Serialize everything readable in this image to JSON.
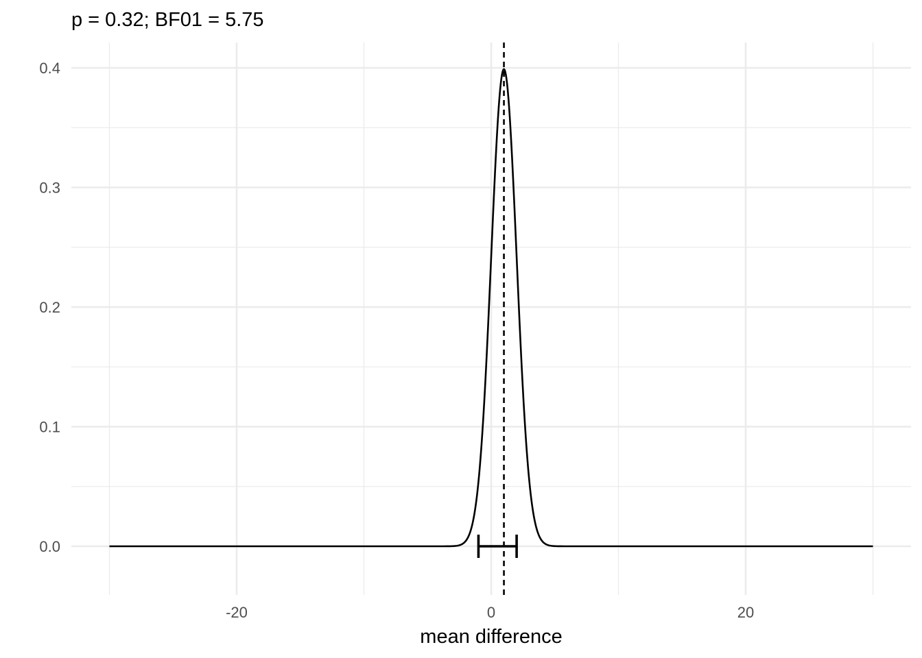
{
  "chart_data": {
    "type": "line",
    "title": "p = 0.32; BF01 = 5.75",
    "xlabel": "mean difference",
    "ylabel": "",
    "xlim": [
      -30,
      30
    ],
    "ylim": [
      0,
      0.4
    ],
    "x_ticks": [
      -20,
      0,
      20
    ],
    "x_tick_labels": [
      "-20",
      "0",
      "20"
    ],
    "y_ticks": [
      0.0,
      0.1,
      0.2,
      0.3,
      0.4
    ],
    "y_tick_labels": [
      "0.0",
      "0.1",
      "0.2",
      "0.3",
      "0.4"
    ],
    "grid": true,
    "legend": "none",
    "line_color": "#000000",
    "density_curve": {
      "distribution": "normal",
      "mean": 1.0,
      "sd": 1.0,
      "x_range": [
        -30,
        30
      ]
    },
    "reference_line": {
      "x": 1.0,
      "style": "dashed"
    },
    "interval": {
      "lower": -1.0,
      "upper": 2.0,
      "y": 0
    }
  }
}
